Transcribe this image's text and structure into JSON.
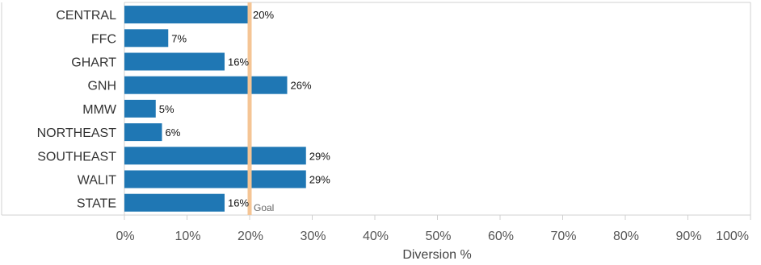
{
  "chart_data": {
    "type": "bar",
    "orientation": "horizontal",
    "categories": [
      "CENTRAL",
      "FFC",
      "GHART",
      "GNH",
      "MMW",
      "NORTHEAST",
      "SOUTHEAST",
      "WALIT",
      "STATE"
    ],
    "values": [
      20,
      7,
      16,
      26,
      5,
      6,
      29,
      29,
      16
    ],
    "value_labels": [
      "20%",
      "7%",
      "16%",
      "26%",
      "5%",
      "6%",
      "29%",
      "29%",
      "16%"
    ],
    "xlabel": "Diversion %",
    "xlim": [
      0,
      100
    ],
    "x_ticks": [
      0,
      10,
      20,
      30,
      40,
      50,
      60,
      70,
      80,
      90,
      100
    ],
    "x_tick_labels": [
      "0%",
      "10%",
      "20%",
      "30%",
      "40%",
      "50%",
      "60%",
      "70%",
      "80%",
      "90%",
      "100%"
    ],
    "goal": {
      "value": 20,
      "label": "Goal"
    },
    "grid": true,
    "colors": {
      "bar": "#1f77b4",
      "goal": "#f5c595",
      "grid": "#ececec",
      "axis": "#d0d0d0"
    }
  }
}
